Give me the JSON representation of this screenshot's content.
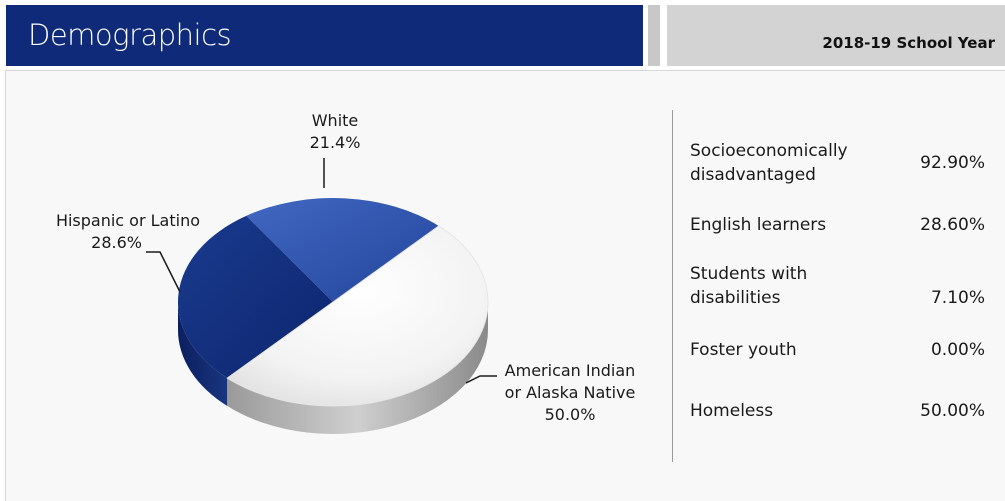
{
  "header": {
    "title": "Demographics",
    "school_year": "2018-19 School Year"
  },
  "colors": {
    "header_blue": "#0f2a78",
    "white_slice": "#2e4fa3",
    "hispanic_slice": "#12307e",
    "american_indian_slice": "#f4f4f4"
  },
  "chart_data": {
    "type": "pie",
    "categories": [
      "White",
      "Hispanic or Latino",
      "American Indian or Alaska Native"
    ],
    "values": [
      21.4,
      28.6,
      50.0
    ],
    "data_labels": [
      [
        "White",
        "21.4%"
      ],
      [
        "Hispanic or Latino",
        "28.6%"
      ],
      [
        "American Indian",
        "or Alaska Native",
        "50.0%"
      ]
    ],
    "style": "3d"
  },
  "stats": [
    {
      "label": "Socioeconomically disadvantaged",
      "value": "92.90%"
    },
    {
      "label": "English learners",
      "value": "28.60%"
    },
    {
      "label": "Students with disabilities",
      "value": "7.10%"
    },
    {
      "label": "Foster youth",
      "value": "0.00%"
    },
    {
      "label": "Homeless",
      "value": "50.00%"
    }
  ]
}
